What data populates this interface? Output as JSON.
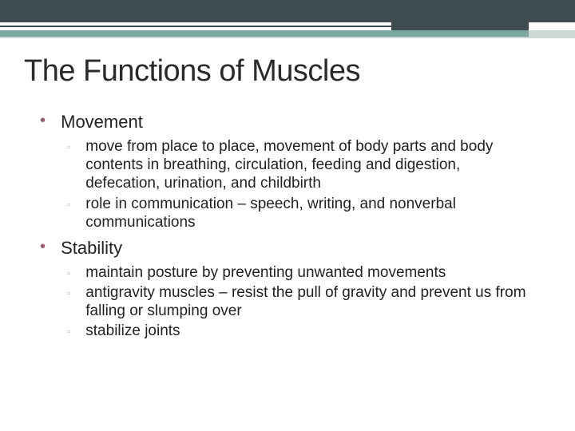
{
  "theme": {
    "header_bar_color": "#3e4b4f",
    "accent_bar_color": "#7ba79e",
    "light_bar_color": "#cdd8d4",
    "title_color": "#2a2a2a",
    "bullet_lvl1_color": "#a05b6b",
    "bullet_lvl2_color": "#b0acae",
    "title_fontsize": 38,
    "body_lvl1_fontsize": 22,
    "body_lvl2_fontsize": 19
  },
  "title": "The Functions of Muscles",
  "sections": [
    {
      "heading": "Movement",
      "items": [
        "move from place to place, movement of body parts and body contents in breathing, circulation, feeding and digestion, defecation, urination, and childbirth",
        "role in communication – speech, writing, and nonverbal communications"
      ]
    },
    {
      "heading": "Stability",
      "items": [
        "maintain posture by preventing unwanted movements",
        "antigravity muscles – resist the pull of gravity and prevent us from falling or slumping over",
        "stabilize joints"
      ]
    }
  ]
}
